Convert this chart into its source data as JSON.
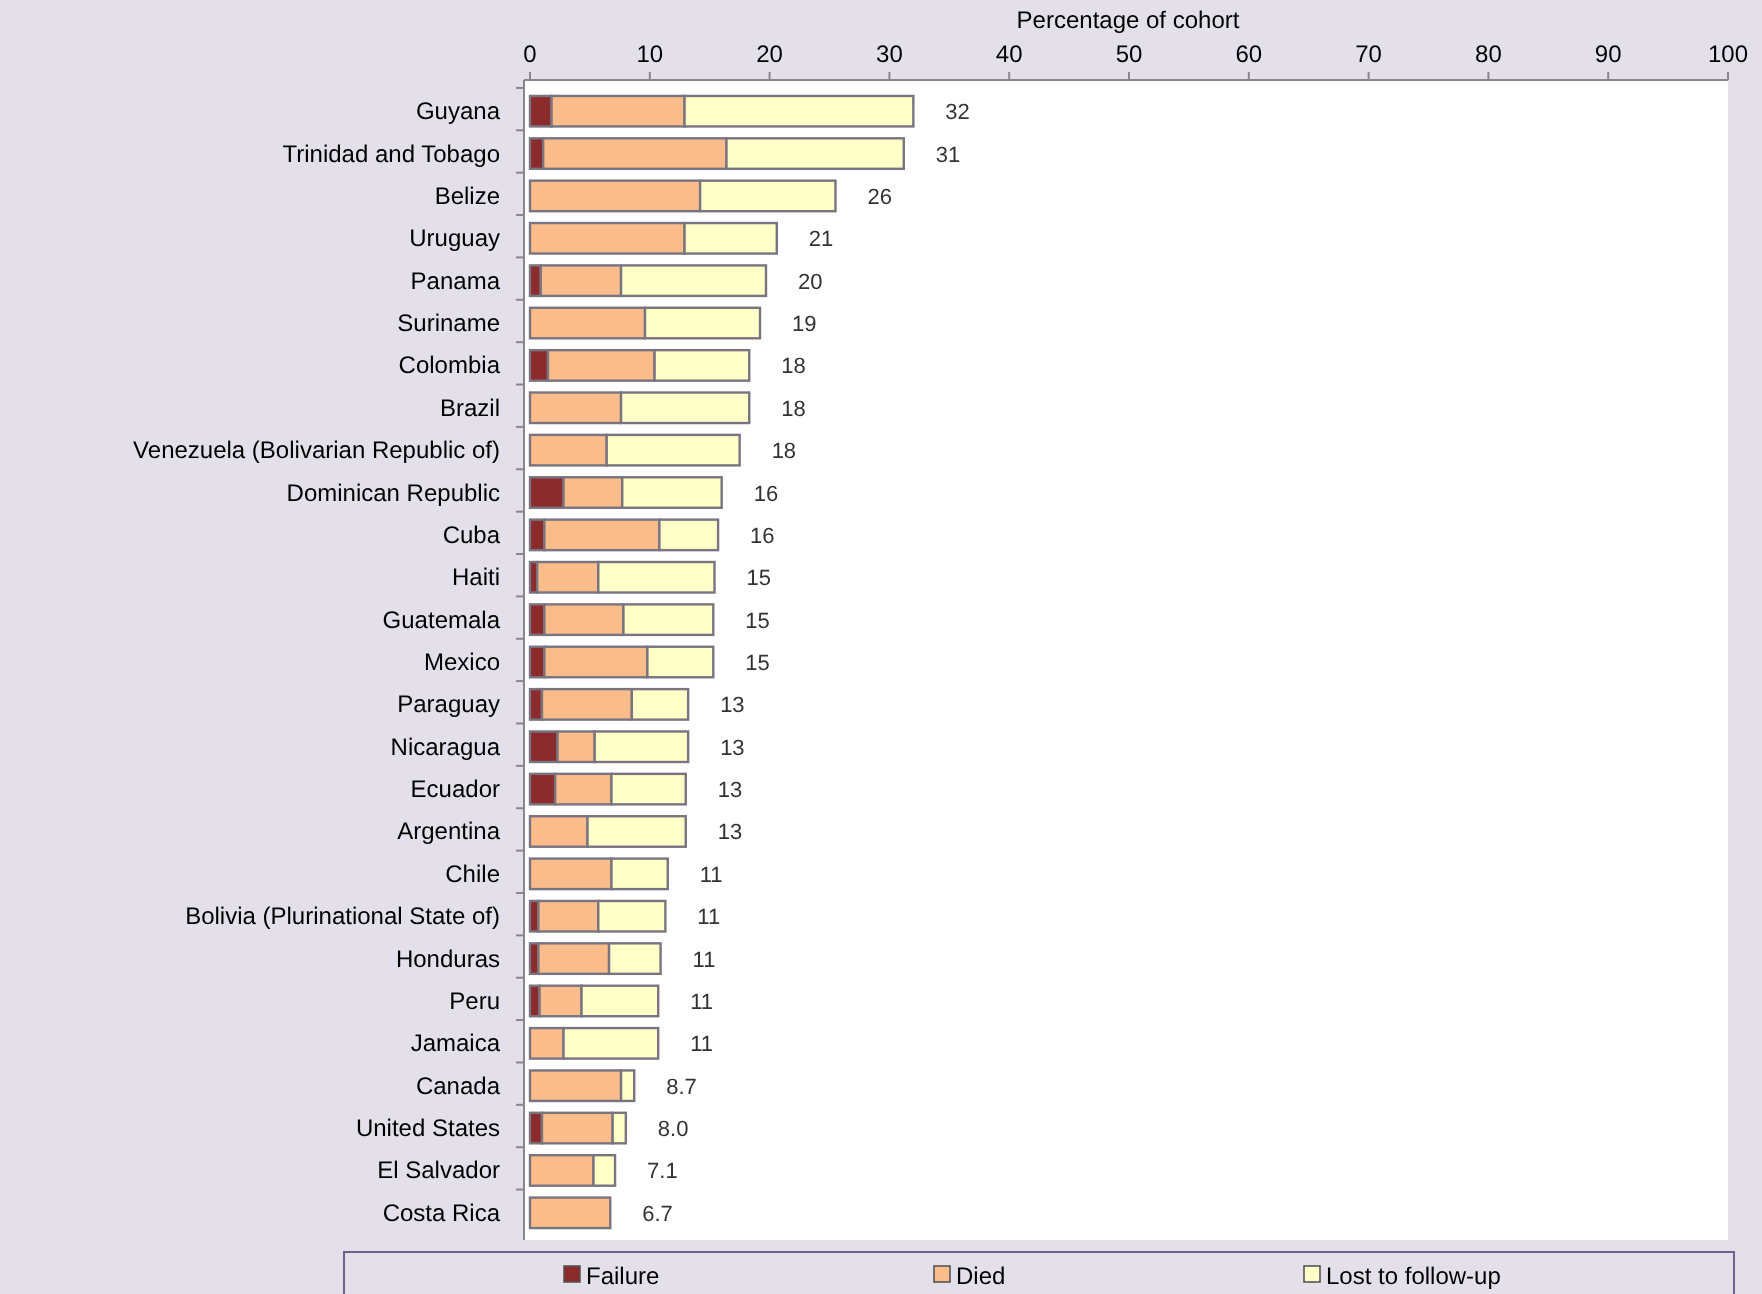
{
  "chart_data": {
    "type": "bar",
    "orientation": "horizontal",
    "stacked": true,
    "xlabel": "Percentage of cohort",
    "legend": "bottom",
    "grid": false,
    "categories": [
      "Guyana",
      "Trinidad and Tobago",
      "Belize",
      "Uruguay",
      "Panama",
      "Suriname",
      "Colombia",
      "Brazil",
      "Venezuela (Bolivarian Republic of)",
      "Dominican Republic",
      "Cuba",
      "Haiti",
      "Guatemala",
      "Mexico",
      "Paraguay",
      "Nicaragua",
      "Ecuador",
      "Argentina",
      "Chile",
      "Bolivia (Plurinational State of)",
      "Honduras",
      "Peru",
      "Jamaica",
      "Canada",
      "United States",
      "El Salvador",
      "Costa Rica"
    ],
    "xlim": [
      0,
      100
    ],
    "xticks": [
      0,
      10,
      20,
      30,
      40,
      50,
      60,
      70,
      80,
      90,
      100
    ],
    "series": [
      {
        "name": "Failure",
        "color": "#8b2b2b",
        "values": [
          1.8,
          1.1,
          0,
          0,
          0.9,
          0,
          1.5,
          0,
          0,
          2.8,
          1.2,
          0.6,
          1.2,
          1.2,
          1.0,
          2.3,
          2.1,
          0,
          0,
          0.7,
          0.7,
          0.8,
          0,
          0,
          1.0,
          0,
          0
        ]
      },
      {
        "name": "Died",
        "color": "#f9bc8a",
        "values": [
          11.1,
          15.3,
          14.2,
          12.9,
          6.7,
          9.6,
          8.9,
          7.6,
          6.4,
          4.9,
          9.6,
          5.1,
          6.6,
          8.6,
          7.5,
          3.1,
          4.7,
          4.8,
          6.8,
          5.0,
          5.9,
          3.5,
          2.8,
          7.6,
          5.9,
          5.3,
          6.7
        ]
      },
      {
        "name": "Lost to follow-up",
        "color": "#ffffc8",
        "values": [
          19.1,
          14.8,
          11.3,
          7.7,
          12.1,
          9.6,
          7.9,
          10.7,
          11.1,
          8.3,
          4.9,
          9.7,
          7.5,
          5.5,
          4.7,
          7.8,
          6.2,
          8.2,
          4.7,
          5.6,
          4.3,
          6.4,
          7.9,
          1.1,
          1.1,
          1.8,
          0
        ]
      }
    ],
    "totals": [
      "32",
      "31",
      "26",
      "21",
      "20",
      "19",
      "18",
      "18",
      "18",
      "16",
      "16",
      "15",
      "15",
      "15",
      "13",
      "13",
      "13",
      "13",
      "11",
      "11",
      "11",
      "11",
      "11",
      "8.7",
      "8.0",
      "7.1",
      "6.7"
    ]
  }
}
